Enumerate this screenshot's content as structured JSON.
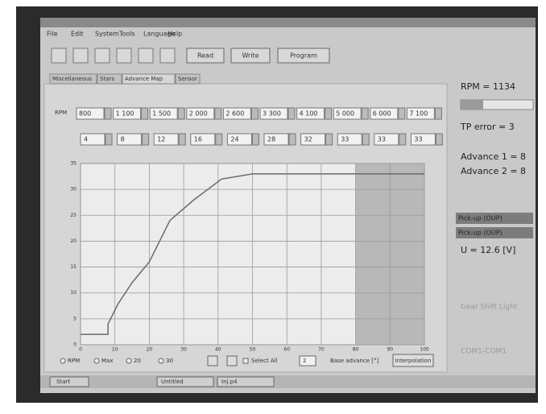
{
  "menu": [
    "File",
    "Edit",
    "System",
    "Tools",
    "Language",
    "Help"
  ],
  "toolbar": {
    "buttons": [
      "Read",
      "Write",
      "Program"
    ]
  },
  "tabs": [
    "Miscellaneous",
    "Stars",
    "Advance Map",
    "Sensor"
  ],
  "rpm_row": {
    "label": "RPM",
    "values": [
      "800",
      "1 100",
      "1 500",
      "2 000",
      "2 600",
      "3 300",
      "4 100",
      "5 000",
      "6 000",
      "7 100"
    ]
  },
  "advance_row": [
    4,
    8,
    12,
    16,
    24,
    28,
    32,
    33,
    33,
    33
  ],
  "chart_data": {
    "type": "line",
    "color": "#6a6a6a",
    "grid": true,
    "x": [
      0,
      8,
      8,
      11,
      15,
      20,
      26,
      33,
      41,
      50,
      60,
      71,
      100
    ],
    "values": [
      2,
      2,
      4,
      8,
      12,
      16,
      24,
      28,
      32,
      33,
      33,
      33,
      33
    ],
    "xlim": [
      0,
      100
    ],
    "xticks": [
      0,
      10,
      20,
      30,
      40,
      50,
      60,
      70,
      80,
      90,
      100
    ],
    "ylim": [
      0,
      35
    ],
    "yticks": [
      0,
      5,
      10,
      15,
      20,
      25,
      30,
      35
    ]
  },
  "chart_controls": {
    "options": [
      "RPM",
      "Max",
      "20",
      "30"
    ],
    "select_all": "Select All",
    "base_value": "2",
    "base_label": "Base advance [°]",
    "button": "Interpolation"
  },
  "status": {
    "rpm": "RPM = 1134",
    "tp_error": "TP error = 3",
    "advance1": "Advance 1 = 8",
    "advance2": "Advance 2 = 8",
    "pickup1": "Pick-up (OUP)",
    "pickup2": "Pick-up (OUP)",
    "voltage": "U = 12.6 [V]",
    "gear_shift": "Gear Shift Light",
    "port": "COM1-COM1"
  },
  "taskbar": {
    "start": "Start",
    "items": [
      "Untitled",
      "Inj.p4"
    ]
  }
}
